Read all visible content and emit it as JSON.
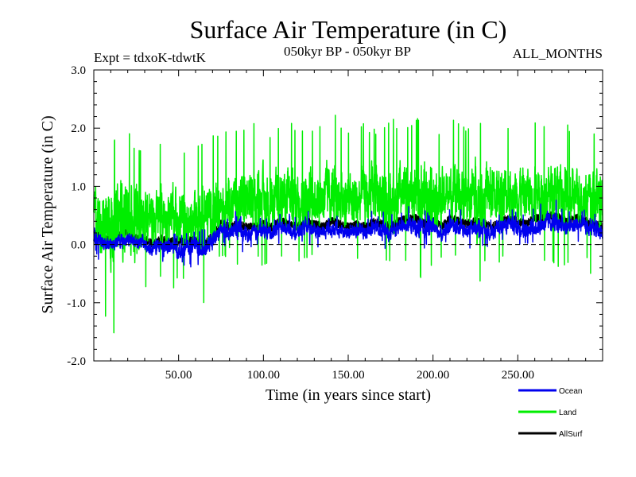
{
  "chart_data": {
    "type": "line",
    "title": "Surface Air Temperature (in C)",
    "subtitle_left": "Expt = tdxoK-tdwtK",
    "subtitle_center": "050kyr BP - 050kyr BP",
    "subtitle_right": "ALL_MONTHS",
    "xlabel": "Time (in years since start)",
    "ylabel": "Surface Air Temperature (in C)",
    "xlim": [
      0,
      300
    ],
    "ylim": [
      -2.0,
      3.0
    ],
    "x_ticks": [
      50,
      100,
      150,
      200,
      250
    ],
    "x_tick_labels": [
      "50.00",
      "100.00",
      "150.00",
      "200.00",
      "250.00"
    ],
    "y_ticks": [
      -2,
      -1,
      0,
      1,
      2,
      3
    ],
    "y_tick_labels": [
      "-2.0",
      "-1.0",
      "0.0",
      "1.0",
      "2.0",
      "3.0"
    ],
    "reference_line": 0.0,
    "legend_position": "bottom-right",
    "series": [
      {
        "name": "Land",
        "color": "#00ee00",
        "x": [
          0,
          5,
          10,
          15,
          20,
          25,
          30,
          35,
          40,
          45,
          50,
          55,
          60,
          65,
          70,
          75,
          80,
          85,
          90,
          95,
          100,
          105,
          110,
          115,
          120,
          125,
          130,
          135,
          140,
          145,
          150,
          155,
          160,
          165,
          170,
          175,
          180,
          185,
          190,
          195,
          200,
          205,
          210,
          215,
          220,
          225,
          230,
          235,
          240,
          245,
          250,
          255,
          260,
          265,
          270,
          275,
          280,
          285,
          290,
          295,
          300
        ],
        "values": [
          0.6,
          0.35,
          0.3,
          0.45,
          0.5,
          0.35,
          0.55,
          0.4,
          0.5,
          0.45,
          0.5,
          0.4,
          0.45,
          0.5,
          0.55,
          0.7,
          0.75,
          0.7,
          0.8,
          0.75,
          0.8,
          0.7,
          0.75,
          0.8,
          0.75,
          0.8,
          0.85,
          0.8,
          0.9,
          0.8,
          0.8,
          0.75,
          0.8,
          0.85,
          0.8,
          0.75,
          0.8,
          0.85,
          0.9,
          0.85,
          0.9,
          0.8,
          0.85,
          0.9,
          0.85,
          0.8,
          0.85,
          0.9,
          0.8,
          0.85,
          0.9,
          0.85,
          0.9,
          0.85,
          0.9,
          0.85,
          0.8,
          0.85,
          0.8,
          0.75,
          0.75
        ],
        "max_values": [
          1.8,
          1.6,
          1.9,
          1.9,
          2.0,
          1.7,
          1.6,
          1.7,
          1.8,
          1.6,
          1.8,
          1.6,
          1.7,
          1.8,
          1.9,
          2.0,
          1.9,
          2.0,
          2.0,
          2.1,
          1.9,
          2.0,
          2.1,
          2.2,
          2.0,
          2.1,
          2.0,
          2.1,
          2.45,
          2.1,
          2.0,
          2.1,
          2.1,
          2.0,
          2.1,
          2.2,
          2.1,
          2.1,
          2.2,
          2.3,
          2.1,
          2.0,
          2.1,
          2.2,
          2.0,
          2.0,
          2.3,
          2.1,
          2.2,
          2.1,
          2.2,
          2.0,
          2.2,
          2.1,
          2.0,
          2.1,
          2.1,
          2.0,
          1.9,
          1.9,
          1.8
        ],
        "min_values": [
          -0.7,
          -1.0,
          -1.75,
          -1.2,
          -1.3,
          -1.5,
          -0.8,
          -0.7,
          -0.6,
          -0.8,
          -0.7,
          -0.6,
          -0.5,
          -1.1,
          -0.3,
          -0.3,
          -0.2,
          -0.4,
          -0.3,
          -0.3,
          -0.4,
          -0.3,
          -0.3,
          -0.2,
          -0.3,
          -0.3,
          -0.2,
          -0.3,
          -0.2,
          -0.3,
          -0.4,
          -0.3,
          -0.3,
          -0.3,
          -0.3,
          -0.4,
          -0.5,
          -0.3,
          -0.4,
          -0.9,
          -0.3,
          -0.3,
          -0.2,
          -0.3,
          -0.2,
          -1.25,
          -0.3,
          -0.4,
          -0.3,
          -0.4,
          -0.3,
          -0.3,
          -0.4,
          -0.3,
          -0.3,
          -0.4,
          -0.3,
          -0.3,
          -0.3,
          -0.7,
          -0.4
        ]
      },
      {
        "name": "Ocean",
        "color": "#0000ee",
        "x": [
          0,
          5,
          10,
          15,
          20,
          25,
          30,
          35,
          40,
          45,
          50,
          55,
          60,
          65,
          70,
          75,
          80,
          85,
          90,
          95,
          100,
          105,
          110,
          115,
          120,
          125,
          130,
          135,
          140,
          145,
          150,
          155,
          160,
          165,
          170,
          175,
          180,
          185,
          190,
          195,
          200,
          205,
          210,
          215,
          220,
          225,
          230,
          235,
          240,
          245,
          250,
          255,
          260,
          265,
          270,
          275,
          280,
          285,
          290,
          295,
          300
        ],
        "values": [
          0.1,
          0.05,
          0.0,
          0.05,
          0.1,
          0.05,
          0.0,
          -0.1,
          0.0,
          -0.05,
          -0.1,
          -0.05,
          0.0,
          -0.1,
          0.05,
          0.25,
          0.2,
          0.25,
          0.15,
          0.2,
          0.25,
          0.2,
          0.3,
          0.25,
          0.2,
          0.3,
          0.25,
          0.2,
          0.3,
          0.25,
          0.2,
          0.25,
          0.2,
          0.3,
          0.25,
          0.2,
          0.3,
          0.35,
          0.3,
          0.25,
          0.3,
          0.2,
          0.35,
          0.3,
          0.25,
          0.3,
          0.25,
          0.2,
          0.3,
          0.35,
          0.3,
          0.25,
          0.3,
          0.35,
          0.4,
          0.35,
          0.3,
          0.35,
          0.3,
          0.25,
          0.2
        ],
        "max_values": [
          0.3,
          0.35,
          0.3,
          0.4,
          0.4,
          0.3,
          0.2,
          0.2,
          0.3,
          0.25,
          0.3,
          0.2,
          0.3,
          0.35,
          0.5,
          0.55,
          0.5,
          0.6,
          0.45,
          0.5,
          0.55,
          0.5,
          0.6,
          0.55,
          0.5,
          0.6,
          0.55,
          0.5,
          0.6,
          0.55,
          0.5,
          0.65,
          0.55,
          0.6,
          0.55,
          0.6,
          0.55,
          0.65,
          0.8,
          0.6,
          0.65,
          0.55,
          0.7,
          0.65,
          0.6,
          0.7,
          0.6,
          0.55,
          0.6,
          0.65,
          0.65,
          0.6,
          0.7,
          0.75,
          0.95,
          0.7,
          0.65,
          0.7,
          0.6,
          0.55,
          0.5
        ],
        "min_values": [
          -0.2,
          -0.3,
          -0.3,
          -0.2,
          -0.25,
          -0.2,
          -0.3,
          -0.4,
          -0.3,
          -0.45,
          -0.45,
          -0.35,
          -0.5,
          -0.3,
          -0.2,
          -0.1,
          -0.05,
          -0.1,
          -0.15,
          -0.1,
          -0.05,
          -0.1,
          0.0,
          -0.05,
          -0.1,
          0.0,
          -0.05,
          -0.1,
          0.0,
          -0.05,
          -0.1,
          -0.05,
          -0.1,
          0.0,
          -0.05,
          -0.1,
          0.0,
          0.0,
          -0.05,
          -0.1,
          0.0,
          -0.1,
          0.0,
          -0.05,
          -0.1,
          0.0,
          -0.05,
          -0.1,
          0.0,
          0.0,
          0.0,
          -0.05,
          0.0,
          0.0,
          0.05,
          0.0,
          0.0,
          0.0,
          -0.05,
          -0.1,
          -0.2
        ]
      },
      {
        "name": "AllSurf",
        "color": "#000000",
        "x": [
          0,
          5,
          10,
          15,
          20,
          25,
          30,
          35,
          40,
          45,
          50,
          55,
          60,
          65,
          70,
          75,
          80,
          85,
          90,
          95,
          100,
          105,
          110,
          115,
          120,
          125,
          130,
          135,
          140,
          145,
          150,
          155,
          160,
          165,
          170,
          175,
          180,
          185,
          190,
          195,
          200,
          205,
          210,
          215,
          220,
          225,
          230,
          235,
          240,
          245,
          250,
          255,
          260,
          265,
          270,
          275,
          280,
          285,
          290,
          295,
          300
        ],
        "values": [
          0.2,
          0.15,
          0.05,
          0.15,
          0.2,
          0.1,
          0.1,
          0.0,
          0.1,
          0.05,
          0.05,
          0.05,
          0.1,
          0.0,
          0.15,
          0.35,
          0.3,
          0.35,
          0.3,
          0.3,
          0.35,
          0.3,
          0.4,
          0.35,
          0.3,
          0.4,
          0.35,
          0.3,
          0.4,
          0.35,
          0.3,
          0.35,
          0.3,
          0.4,
          0.35,
          0.3,
          0.4,
          0.45,
          0.45,
          0.35,
          0.4,
          0.3,
          0.45,
          0.4,
          0.35,
          0.4,
          0.35,
          0.3,
          0.4,
          0.45,
          0.4,
          0.35,
          0.45,
          0.45,
          0.5,
          0.45,
          0.4,
          0.45,
          0.4,
          0.35,
          0.3
        ]
      }
    ]
  }
}
